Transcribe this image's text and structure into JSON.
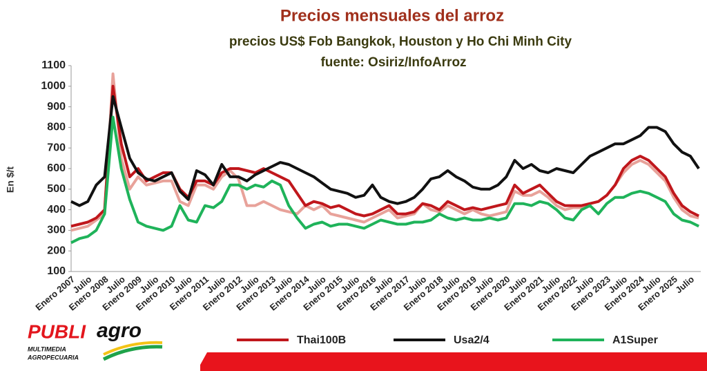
{
  "chart_data": {
    "type": "line",
    "title": "Precios mensuales del arroz",
    "subtitle": "precios US$ Fob Bangkok, Houston y Ho Chi Minh City",
    "source": "fuente: Osiriz/InfoArroz",
    "y_label": "En $/t",
    "categories": [
      "Enero 2007",
      null,
      "Julio",
      null,
      "Enero 2008",
      null,
      "Julio",
      null,
      "Enero 2009",
      null,
      "Julio",
      null,
      "Enero 2010",
      null,
      "Julio",
      null,
      "Enero 2011",
      null,
      "Julio",
      null,
      "Enero 2012",
      null,
      "Julio",
      null,
      "Enero 2013",
      null,
      "Julio",
      null,
      "Enero 2014",
      null,
      "Julio",
      null,
      "Enero 2015",
      null,
      "Julio",
      null,
      "Enero 2016",
      null,
      "Julio",
      null,
      "Enero 2017",
      null,
      "Julio",
      null,
      "Enero 2018",
      null,
      "Julio",
      null,
      "Enero 2019",
      null,
      "Julio",
      null,
      "Enero 2020",
      null,
      "Julio",
      null,
      "Enero 2021",
      null,
      "Julio",
      null,
      "Enero 2022",
      null,
      "Julio",
      null,
      "Enero 2023",
      null,
      "Julio",
      null,
      "Enero 2024",
      null,
      "Julio",
      null,
      "Enero 2025",
      null,
      "Julio",
      null
    ],
    "series": [
      {
        "color": "#e8a29a",
        "values": [
          300,
          310,
          320,
          350,
          380,
          1060,
          650,
          500,
          560,
          520,
          530,
          540,
          540,
          440,
          420,
          520,
          520,
          500,
          560,
          590,
          550,
          420,
          420,
          440,
          420,
          400,
          390,
          380,
          420,
          400,
          420,
          380,
          370,
          360,
          350,
          340,
          360,
          380,
          400,
          360,
          370,
          380,
          430,
          400,
          390,
          420,
          400,
          380,
          400,
          380,
          370,
          380,
          390,
          490,
          470,
          470,
          490,
          460,
          420,
          400,
          410,
          410,
          430,
          440,
          470,
          520,
          580,
          620,
          640,
          620,
          580,
          540,
          460,
          400,
          370,
          360
        ]
      },
      {
        "name": "Thai100B",
        "color": "#c0171c",
        "values": [
          320,
          330,
          340,
          360,
          400,
          1000,
          720,
          560,
          600,
          540,
          560,
          580,
          580,
          500,
          460,
          540,
          540,
          520,
          580,
          600,
          600,
          590,
          580,
          600,
          580,
          560,
          540,
          480,
          420,
          440,
          430,
          410,
          420,
          400,
          380,
          370,
          380,
          400,
          420,
          380,
          380,
          390,
          430,
          420,
          400,
          440,
          420,
          400,
          410,
          400,
          410,
          420,
          430,
          520,
          480,
          500,
          520,
          480,
          440,
          420,
          420,
          420,
          430,
          440,
          470,
          520,
          600,
          640,
          660,
          640,
          600,
          560,
          480,
          420,
          390,
          370
        ]
      },
      {
        "name": "Usa2/4",
        "color": "#111111",
        "values": [
          440,
          420,
          440,
          520,
          560,
          950,
          800,
          650,
          580,
          550,
          540,
          560,
          580,
          490,
          450,
          590,
          570,
          520,
          620,
          560,
          560,
          540,
          570,
          590,
          610,
          630,
          620,
          600,
          580,
          560,
          530,
          500,
          490,
          480,
          460,
          470,
          520,
          460,
          440,
          430,
          440,
          460,
          500,
          550,
          560,
          590,
          560,
          540,
          510,
          500,
          500,
          520,
          560,
          640,
          600,
          620,
          590,
          580,
          600,
          590,
          580,
          620,
          660,
          680,
          700,
          720,
          720,
          740,
          760,
          800,
          800,
          780,
          720,
          680,
          660,
          600
        ]
      },
      {
        "name": "A1Super",
        "color": "#1fb35a",
        "values": [
          240,
          260,
          270,
          300,
          380,
          850,
          600,
          450,
          340,
          320,
          310,
          300,
          320,
          420,
          350,
          340,
          420,
          410,
          440,
          520,
          520,
          500,
          520,
          510,
          540,
          520,
          420,
          360,
          310,
          330,
          340,
          320,
          330,
          330,
          320,
          310,
          330,
          350,
          340,
          330,
          330,
          340,
          340,
          350,
          380,
          360,
          350,
          360,
          350,
          350,
          360,
          350,
          360,
          430,
          430,
          420,
          440,
          430,
          400,
          360,
          350,
          400,
          420,
          380,
          430,
          460,
          460,
          480,
          490,
          480,
          460,
          440,
          380,
          350,
          340,
          320
        ]
      }
    ],
    "ylim": [
      100,
      1100
    ],
    "yticks": [
      100,
      200,
      300,
      400,
      500,
      600,
      700,
      800,
      900,
      1000,
      1100
    ]
  },
  "logo": {
    "brand": "PUBLI",
    "brand2": "agro",
    "tagline1": "MULTIMEDIA",
    "tagline2": "AGROPECUARIA"
  }
}
